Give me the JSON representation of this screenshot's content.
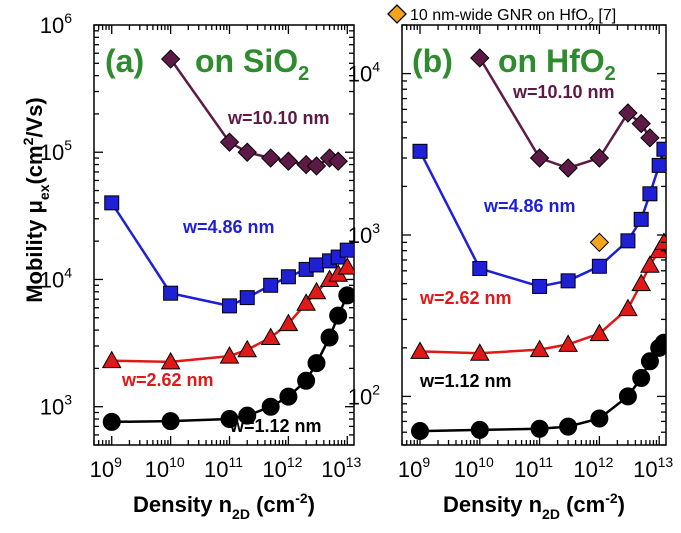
{
  "chart_data": [
    {
      "type": "line",
      "panel_label": "(a)",
      "substrate_prefix": "on SiO",
      "substrate_sub": "2",
      "xlabel_main": "Density n",
      "xlabel_sub": "2D",
      "xlabel_unit_open": " (cm",
      "xlabel_unit_exp": "-2",
      "xlabel_unit_close": ")",
      "ylabel_main": "Mobility μ",
      "ylabel_sub": "ex",
      "ylabel_unit_open": "(cm",
      "ylabel_unit_exp": "2",
      "ylabel_unit_close": "/Vs)",
      "xscale": "log",
      "yscale": "log",
      "xlim": [
        500000000.0,
        13000000000000.0
      ],
      "ylim": [
        500,
        1000000
      ],
      "xticks": [
        {
          "base": "10",
          "exp": "9",
          "value": 1000000000.0
        },
        {
          "base": "10",
          "exp": "10",
          "value": 10000000000.0
        },
        {
          "base": "10",
          "exp": "11",
          "value": 100000000000.0
        },
        {
          "base": "10",
          "exp": "12",
          "value": 1000000000000.0
        },
        {
          "base": "10",
          "exp": "13",
          "value": 10000000000000.0
        }
      ],
      "yticks": [
        {
          "base": "10",
          "exp": "3",
          "value": 1000
        },
        {
          "base": "10",
          "exp": "4",
          "value": 10000
        },
        {
          "base": "10",
          "exp": "5",
          "value": 100000
        },
        {
          "base": "10",
          "exp": "6",
          "value": 1000000
        }
      ],
      "series": [
        {
          "label": "w=10.10 nm",
          "color": "#5e1a47",
          "marker": "diamond",
          "x": [
            10000000000.0,
            100000000000.0,
            200000000000.0,
            500000000000.0,
            1000000000000.0,
            2000000000000.0,
            3000000000000.0,
            5000000000000.0,
            7000000000000.0
          ],
          "y": [
            540000,
            120000,
            100000,
            90000,
            85000,
            80000,
            78000,
            90000,
            85000
          ]
        },
        {
          "label": "w=4.86 nm",
          "color": "#1f1fd6",
          "marker": "square",
          "x": [
            1000000000.0,
            10000000000.0,
            100000000000.0,
            200000000000.0,
            500000000000.0,
            1000000000000.0,
            2000000000000.0,
            3000000000000.0,
            5000000000000.0,
            7000000000000.0,
            10000000000000.0
          ],
          "y": [
            40000,
            7800,
            6200,
            7200,
            9000,
            10500,
            12000,
            13000,
            14000,
            15000,
            17000
          ]
        },
        {
          "label": "w=2.62 nm",
          "color": "#e01818",
          "marker": "triangle",
          "x": [
            1000000000.0,
            10000000000.0,
            100000000000.0,
            200000000000.0,
            500000000000.0,
            1000000000000.0,
            2000000000000.0,
            3000000000000.0,
            5000000000000.0,
            7000000000000.0,
            10000000000000.0
          ],
          "y": [
            2300,
            2250,
            2500,
            2800,
            3500,
            4500,
            6500,
            8000,
            10000,
            11000,
            12500
          ]
        },
        {
          "label": "w=1.12 nm",
          "color": "#000000",
          "marker": "circle",
          "x": [
            1000000000.0,
            10000000000.0,
            100000000000.0,
            200000000000.0,
            500000000000.0,
            1000000000000.0,
            2000000000000.0,
            3000000000000.0,
            5000000000000.0,
            7000000000000.0,
            10000000000000.0
          ],
          "y": [
            760,
            770,
            800,
            850,
            1000,
            1200,
            1600,
            2200,
            3500,
            5200,
            7500
          ]
        }
      ]
    },
    {
      "type": "line",
      "panel_label": "(b)",
      "substrate_prefix": "on HfO",
      "substrate_sub": "2",
      "xlabel_main": "Density n",
      "xlabel_sub": "2D",
      "xlabel_unit_open": " (cm",
      "xlabel_unit_exp": "-2",
      "xlabel_unit_close": ")",
      "xscale": "log",
      "yscale": "log",
      "xlim": [
        500000000.0,
        13000000000000.0
      ],
      "ylim": [
        50,
        20000
      ],
      "xticks": [
        {
          "base": "10",
          "exp": "9",
          "value": 1000000000.0
        },
        {
          "base": "10",
          "exp": "10",
          "value": 10000000000.0
        },
        {
          "base": "10",
          "exp": "11",
          "value": 100000000000.0
        },
        {
          "base": "10",
          "exp": "12",
          "value": 1000000000000.0
        },
        {
          "base": "10",
          "exp": "13",
          "value": 10000000000000.0
        }
      ],
      "yticks": [
        {
          "base": "10",
          "exp": "2",
          "value": 100
        },
        {
          "base": "10",
          "exp": "3",
          "value": 1000
        },
        {
          "base": "10",
          "exp": "4",
          "value": 10000
        }
      ],
      "legend_note": {
        "text_main": "10 nm-wide GNR on HfO",
        "text_sub": "2",
        "text_after": " [7]",
        "color": "#f5a31a"
      },
      "extra_point": {
        "x": 1000000000000.0,
        "y": 900,
        "color": "#f5a31a",
        "marker": "diamond"
      },
      "series": [
        {
          "label": "w=10.10 nm",
          "color": "#5e1a47",
          "marker": "diamond",
          "x": [
            10000000000.0,
            100000000000.0,
            300000000000.0,
            1000000000000.0,
            3000000000000.0,
            5000000000000.0,
            7000000000000.0
          ],
          "y": [
            12500,
            3000,
            2600,
            3000,
            5700,
            4900,
            4000
          ]
        },
        {
          "label": "w=4.86 nm",
          "color": "#1f1fd6",
          "marker": "square",
          "x": [
            1000000000.0,
            10000000000.0,
            100000000000.0,
            300000000000.0,
            1000000000000.0,
            3000000000000.0,
            5000000000000.0,
            7000000000000.0,
            10000000000000.0,
            12000000000000.0
          ],
          "y": [
            3300,
            620,
            480,
            520,
            640,
            920,
            1250,
            1800,
            2700,
            3400
          ]
        },
        {
          "label": "w=2.62 nm",
          "color": "#e01818",
          "marker": "triangle",
          "x": [
            1000000000.0,
            10000000000.0,
            100000000000.0,
            300000000000.0,
            1000000000000.0,
            3000000000000.0,
            5000000000000.0,
            7000000000000.0,
            10000000000000.0,
            12000000000000.0
          ],
          "y": [
            190,
            185,
            195,
            210,
            245,
            350,
            500,
            650,
            800,
            900
          ]
        },
        {
          "label": "w=1.12 nm",
          "color": "#000000",
          "marker": "circle",
          "x": [
            1000000000.0,
            10000000000.0,
            100000000000.0,
            300000000000.0,
            1000000000000.0,
            3000000000000.0,
            5000000000000.0,
            7000000000000.0,
            10000000000000.0,
            12000000000000.0
          ],
          "y": [
            61,
            62,
            63,
            65,
            73,
            100,
            130,
            165,
            200,
            215
          ]
        }
      ]
    }
  ]
}
